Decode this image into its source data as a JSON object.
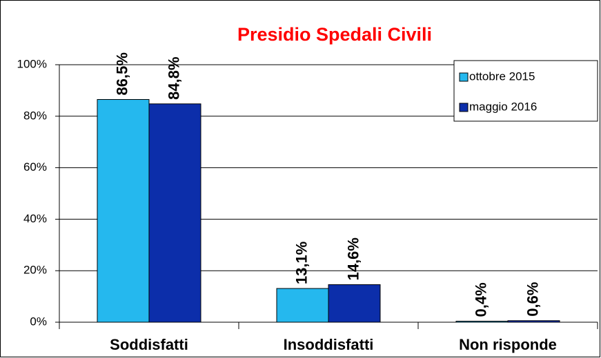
{
  "chart_data": {
    "type": "bar",
    "title": "Presidio Spedali Civili",
    "categories": [
      "Soddisfatti",
      "Insoddisfatti",
      "Non risponde"
    ],
    "series": [
      {
        "name": "ottobre 2015",
        "color": "#25b8ee",
        "values": [
          86.5,
          13.1,
          0.4
        ],
        "value_labels": [
          "86,5%",
          "13,1%",
          "0,4%"
        ]
      },
      {
        "name": "maggio 2016",
        "color": "#0c2eaa",
        "values": [
          84.8,
          14.6,
          0.6
        ],
        "value_labels": [
          "84,8%",
          "14,6%",
          "0,6%"
        ]
      }
    ],
    "ylim": [
      0,
      100
    ],
    "yticks": [
      {
        "value": 0,
        "label": "0%"
      },
      {
        "value": 20,
        "label": "20%"
      },
      {
        "value": 40,
        "label": "40%"
      },
      {
        "value": 60,
        "label": "60%"
      },
      {
        "value": 80,
        "label": "80%"
      },
      {
        "value": 100,
        "label": "100%"
      }
    ],
    "grid": true,
    "legend": "top-right",
    "title_color": "#ff0000"
  }
}
